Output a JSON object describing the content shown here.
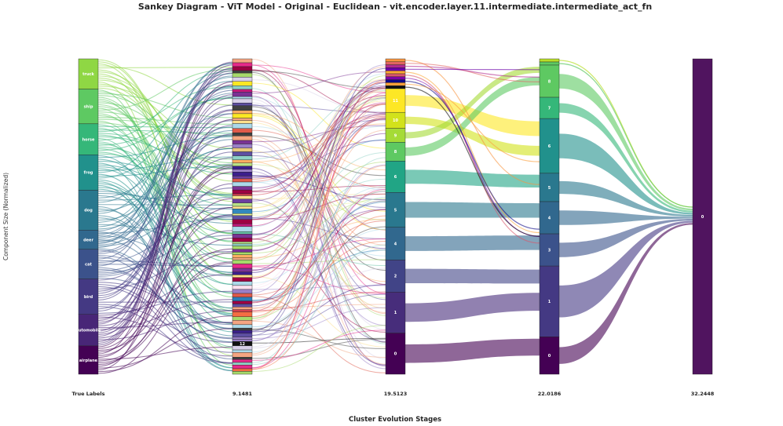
{
  "chart_data": {
    "type": "sankey",
    "title": "Sankey Diagram - ViT Model - Original - Euclidean - vit.encoder.layer.11.intermediate.intermediate_act_fn",
    "xlabel": "Cluster Evolution Stages",
    "ylabel": "Component Size (Normalized)",
    "stages": [
      "True Labels",
      "9.1481",
      "19.5123",
      "22.0186",
      "32.2448"
    ],
    "stage0_nodes": [
      {
        "label": "truck",
        "size": 0.094,
        "color": "#8fd744"
      },
      {
        "label": "ship",
        "size": 0.108,
        "color": "#5ec962"
      },
      {
        "label": "horse",
        "size": 0.096,
        "color": "#35b779"
      },
      {
        "label": "frog",
        "size": 0.11,
        "color": "#21918c"
      },
      {
        "label": "dog",
        "size": 0.124,
        "color": "#2a788e"
      },
      {
        "label": "deer",
        "size": 0.06,
        "color": "#31688e"
      },
      {
        "label": "cat",
        "size": 0.092,
        "color": "#3b528b"
      },
      {
        "label": "bird",
        "size": 0.11,
        "color": "#443983"
      },
      {
        "label": "automobile",
        "size": 0.098,
        "color": "#482677"
      },
      {
        "label": "airplane",
        "size": 0.088,
        "color": "#440154"
      }
    ],
    "stage1_labeled_node": "12",
    "stage2_nodes": [
      {
        "label": "11",
        "size": 0.068,
        "color": "#fde725"
      },
      {
        "label": "10",
        "size": 0.046,
        "color": "#d2e21b"
      },
      {
        "label": "9",
        "size": 0.04,
        "color": "#a5db36"
      },
      {
        "label": "8",
        "size": 0.054,
        "color": "#5ec962"
      },
      {
        "label": "6",
        "size": 0.09,
        "color": "#21a585"
      },
      {
        "label": "5",
        "size": 0.1,
        "color": "#2a788e"
      },
      {
        "label": "4",
        "size": 0.094,
        "color": "#31688e"
      },
      {
        "label": "2",
        "size": 0.092,
        "color": "#414487"
      },
      {
        "label": "1",
        "size": 0.118,
        "color": "#472d7b"
      },
      {
        "label": "0",
        "size": 0.118,
        "color": "#440154"
      }
    ],
    "stage3_nodes": [
      {
        "label": "8",
        "size": 0.1,
        "color": "#5ec962"
      },
      {
        "label": "7",
        "size": 0.066,
        "color": "#35b779"
      },
      {
        "label": "6",
        "size": 0.17,
        "color": "#21918c"
      },
      {
        "label": "5",
        "size": 0.088,
        "color": "#2a788e"
      },
      {
        "label": "4",
        "size": 0.1,
        "color": "#31688e"
      },
      {
        "label": "3",
        "size": 0.1,
        "color": "#3b528b"
      },
      {
        "label": "1",
        "size": 0.22,
        "color": "#443983"
      },
      {
        "label": "0",
        "size": 0.116,
        "color": "#440154"
      }
    ],
    "stage4_nodes": [
      {
        "label": "0",
        "size": 1.0,
        "color": "#50145f"
      }
    ]
  }
}
